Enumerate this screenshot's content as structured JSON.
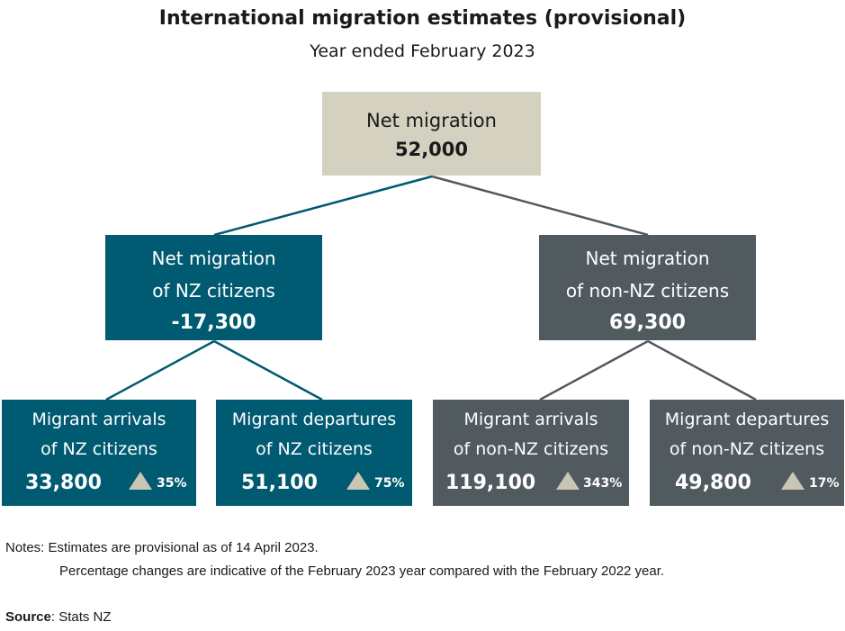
{
  "title": "International migration estimates (provisional)",
  "subtitle": "Year ended February 2023",
  "root": {
    "label": "Net migration",
    "value": "52,000"
  },
  "nz": {
    "label_line1": "Net migration",
    "label_line2": "of NZ citizens",
    "value": "-17,300",
    "arrivals": {
      "label_line1": "Migrant arrivals",
      "label_line2": "of NZ citizens",
      "value": "33,800",
      "change": "35%"
    },
    "departures": {
      "label_line1": "Migrant departures",
      "label_line2": "of NZ citizens",
      "value": "51,100",
      "change": "75%"
    }
  },
  "non_nz": {
    "label_line1": "Net migration",
    "label_line2": "of non-NZ citizens",
    "value": "69,300",
    "arrivals": {
      "label_line1": "Migrant arrivals",
      "label_line2": "of non-NZ citizens",
      "value": "119,100",
      "change": "343%"
    },
    "departures": {
      "label_line1": "Migrant departures",
      "label_line2": "of non-NZ citizens",
      "value": "49,800",
      "change": "17%"
    }
  },
  "notes": {
    "line1": "Notes: Estimates are provisional as of 14 April 2023.",
    "line2": "Percentage changes are indicative of the February 2023 year compared with the February 2022 year."
  },
  "source": {
    "label": "Source",
    "text": ": Stats NZ"
  },
  "colors": {
    "root": "#d4d1c1",
    "nz": "#005a71",
    "non_nz": "#515a5f",
    "triangle": "#c9c6b4"
  }
}
